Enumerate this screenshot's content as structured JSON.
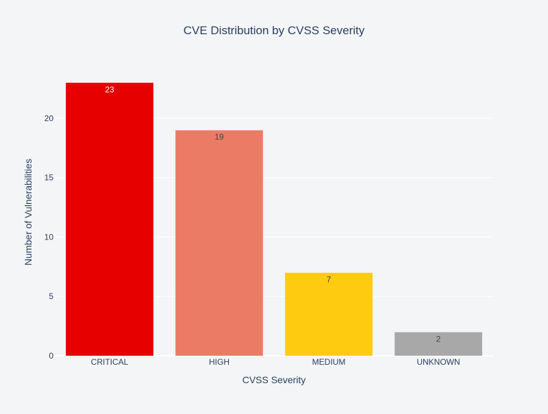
{
  "chart_data": {
    "type": "bar",
    "title": "CVE Distribution by CVSS Severity",
    "xlabel": "CVSS Severity",
    "ylabel": "Number of Vulnerabilities",
    "categories": [
      "CRITICAL",
      "HIGH",
      "MEDIUM",
      "UNKNOWN"
    ],
    "values": [
      23,
      19,
      7,
      2
    ],
    "colors": [
      "#e60000",
      "#ec7b65",
      "#fecb10",
      "#a8a8a8"
    ],
    "data_labels": [
      "23",
      "19",
      "7",
      "2"
    ],
    "label_colors": [
      "#ffffff",
      "#444444",
      "#444444",
      "#444444"
    ],
    "ylim": [
      0,
      24.2
    ],
    "yticks": [
      0,
      5,
      10,
      15,
      20
    ],
    "ytick_labels": [
      "0",
      "5",
      "10",
      "15",
      "20"
    ],
    "grid": true,
    "legend": "none"
  }
}
